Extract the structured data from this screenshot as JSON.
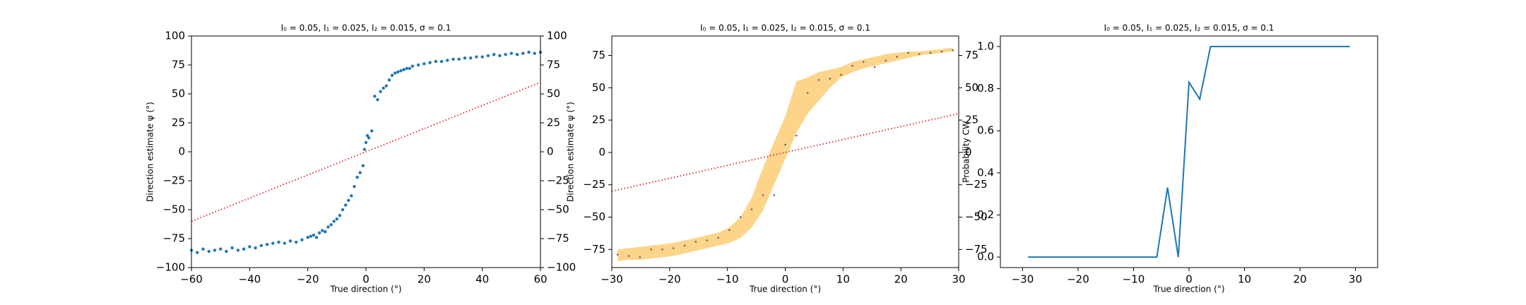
{
  "chart_data": [
    {
      "type": "scatter",
      "title": "I₀ = 0.05, I₁ = 0.025, I₂ = 0.015, σ = 0.1",
      "xlabel": "True direction (°)",
      "ylabel": "Direction estimate ψ (°)",
      "xlim": [
        -60,
        60
      ],
      "ylim": [
        -100,
        100
      ],
      "y2lim": [
        -100,
        100
      ],
      "xticks": [
        {
          "value": -60,
          "label": "−60"
        },
        {
          "value": -40,
          "label": "−40"
        },
        {
          "value": -20,
          "label": "−20"
        },
        0,
        20,
        40,
        60
      ],
      "yticks": [
        {
          "value": -100,
          "label": "−100"
        },
        {
          "value": -75,
          "label": "−75"
        },
        {
          "value": -50,
          "label": "−50"
        },
        {
          "value": -25,
          "label": "−25"
        },
        0,
        25,
        50,
        75,
        100
      ],
      "y2ticks": [
        {
          "value": -100,
          "label": "−100"
        },
        {
          "value": -75,
          "label": "−75"
        },
        {
          "value": -50,
          "label": "−50"
        },
        {
          "value": -25,
          "label": "−25"
        },
        0,
        25,
        50,
        75,
        100
      ],
      "series": [
        {
          "type": "scatter",
          "color": "#1f77b4",
          "x": [
            -60,
            -58,
            -56,
            -54,
            -52,
            -50,
            -48,
            -46,
            -44,
            -42,
            -40,
            -38,
            -36,
            -34,
            -32,
            -30,
            -28,
            -26,
            -24,
            -22,
            -20,
            -19,
            -18,
            -17,
            -16,
            -15,
            -14,
            -13,
            -12,
            -11,
            -10,
            -9,
            -8,
            -7,
            -6,
            -5,
            -4,
            -3,
            -2,
            -1,
            -0.5,
            0,
            0.5,
            1,
            2,
            3,
            4,
            5,
            6,
            7,
            8,
            9,
            10,
            11,
            12,
            13,
            14,
            15,
            16,
            18,
            20,
            22,
            24,
            26,
            28,
            30,
            32,
            34,
            36,
            38,
            40,
            42,
            44,
            46,
            48,
            50,
            52,
            54,
            56,
            58,
            60
          ],
          "values": [
            -85,
            -87,
            -84,
            -86,
            -85,
            -84,
            -86,
            -83,
            -85,
            -84,
            -82,
            -83,
            -81,
            -80,
            -79,
            -78,
            -79,
            -77,
            -78,
            -76,
            -74,
            -73,
            -72,
            -74,
            -70,
            -68,
            -69,
            -65,
            -63,
            -60,
            -58,
            -55,
            -50,
            -46,
            -42,
            -38,
            -30,
            -22,
            -18,
            -12,
            2,
            8,
            14,
            12,
            18,
            48,
            45,
            52,
            55,
            57,
            62,
            66,
            68,
            69,
            70,
            71,
            72,
            72,
            74,
            75,
            76,
            77,
            78,
            78,
            79,
            80,
            80,
            81,
            81,
            82,
            82,
            83,
            84,
            83,
            84,
            85,
            84,
            85,
            86,
            85,
            86
          ]
        },
        {
          "type": "dotted-line",
          "color": "#d62728",
          "x": [
            -60,
            60
          ],
          "values": [
            -60,
            60
          ]
        }
      ]
    },
    {
      "type": "band",
      "title": "I₀ = 0.05, I₁ = 0.025, I₂ = 0.015, σ = 0.1",
      "xlabel": "True direction (°)",
      "ylabel": "Direction estimate ψ (°)",
      "xlim": [
        -30,
        30
      ],
      "ylim": [
        -89,
        90
      ],
      "y2lim": [
        -89,
        90
      ],
      "xticks": [
        {
          "value": -30,
          "label": "−30"
        },
        {
          "value": -20,
          "label": "−20"
        },
        {
          "value": -10,
          "label": "−10"
        },
        0,
        10,
        20,
        30
      ],
      "yticks": [
        {
          "value": -75,
          "label": "−75"
        },
        {
          "value": -50,
          "label": "−50"
        },
        {
          "value": -25,
          "label": "−25"
        },
        0,
        25,
        50,
        75
      ],
      "y2ticks": [
        {
          "value": -75,
          "label": "−75"
        },
        {
          "value": -50,
          "label": "−50"
        },
        {
          "value": -25,
          "label": "−25"
        },
        0,
        25,
        50,
        75
      ],
      "series": [
        {
          "type": "band",
          "color": "#fdd58a",
          "x": [
            -29,
            -27.07,
            -25.13,
            -23.2,
            -21.27,
            -19.33,
            -17.4,
            -15.47,
            -13.53,
            -11.6,
            -9.67,
            -7.73,
            -5.8,
            -3.87,
            -1.93,
            0,
            1.93,
            3.87,
            5.8,
            7.73,
            9.67,
            11.6,
            13.53,
            15.47,
            17.4,
            19.33,
            21.27,
            23.2,
            25.13,
            27.07,
            29
          ],
          "upper": [
            -75,
            -74,
            -73,
            -72,
            -71,
            -70,
            -68,
            -66,
            -64,
            -62,
            -58,
            -50,
            -35,
            -12,
            8,
            28,
            55,
            58,
            62,
            64,
            66,
            70,
            72,
            74,
            76,
            77,
            78,
            78,
            79,
            80,
            81
          ],
          "lower": [
            -84,
            -83,
            -83,
            -82,
            -81,
            -80,
            -78,
            -76,
            -74,
            -72,
            -70,
            -66,
            -58,
            -45,
            -25,
            -5,
            15,
            30,
            40,
            50,
            58,
            62,
            65,
            67,
            69,
            71,
            73,
            75,
            76,
            77,
            78
          ]
        },
        {
          "type": "dotted-line",
          "color": "#d62728",
          "x": [
            -30,
            30
          ],
          "values": [
            -30,
            30
          ]
        },
        {
          "type": "scatter",
          "color": "#666666",
          "x": [
            -29,
            -27.07,
            -25.13,
            -23.2,
            -21.27,
            -19.33,
            -17.4,
            -15.47,
            -13.53,
            -11.6,
            -9.67,
            -7.73,
            -5.8,
            -3.87,
            -1.93,
            0,
            1.93,
            3.87,
            5.8,
            7.73,
            9.67,
            11.6,
            13.53,
            15.47,
            17.4,
            19.33,
            21.27,
            23.2,
            25.13,
            27.07,
            29
          ],
          "values": [
            -79,
            -80,
            -81,
            -75,
            -75,
            -74,
            -72,
            -69,
            -68,
            -66,
            -60,
            -50,
            -44,
            -33,
            -33,
            6,
            13,
            46,
            56,
            57,
            60,
            67,
            70,
            66,
            71,
            74,
            77,
            76,
            77,
            78,
            79
          ]
        }
      ]
    },
    {
      "type": "line",
      "title": "I₀ = 0.05, I₁ = 0.025, I₂ = 0.015, σ = 0.1",
      "xlabel": "True direction (°)",
      "ylabel": "Probability CW",
      "xlim": [
        -34,
        34
      ],
      "ylim": [
        -0.05,
        1.05
      ],
      "xticks": [
        {
          "value": -30,
          "label": "−30"
        },
        {
          "value": -20,
          "label": "−20"
        },
        {
          "value": -10,
          "label": "−10"
        },
        0,
        10,
        20,
        30
      ],
      "yticks": [
        {
          "value": 0,
          "label": "0.0"
        },
        0.2,
        0.4,
        0.6,
        0.8,
        {
          "value": 1,
          "label": "1.0"
        }
      ],
      "series": [
        {
          "type": "line",
          "color": "#1f77b4",
          "x": [
            -29,
            -27.07,
            -25.13,
            -23.2,
            -21.27,
            -19.33,
            -17.4,
            -15.47,
            -13.53,
            -11.6,
            -9.67,
            -7.73,
            -5.8,
            -3.87,
            -1.93,
            0,
            1.93,
            3.87,
            5.8,
            7.73,
            9.67,
            11.6,
            13.53,
            15.47,
            17.4,
            19.33,
            21.27,
            23.2,
            25.13,
            27.07,
            29
          ],
          "values": [
            0,
            0,
            0,
            0,
            0,
            0,
            0,
            0,
            0,
            0,
            0,
            0,
            0,
            0.33,
            0,
            0.83,
            0.75,
            1,
            1,
            1,
            1,
            1,
            1,
            1,
            1,
            1,
            1,
            1,
            1,
            1,
            1
          ]
        }
      ]
    }
  ]
}
